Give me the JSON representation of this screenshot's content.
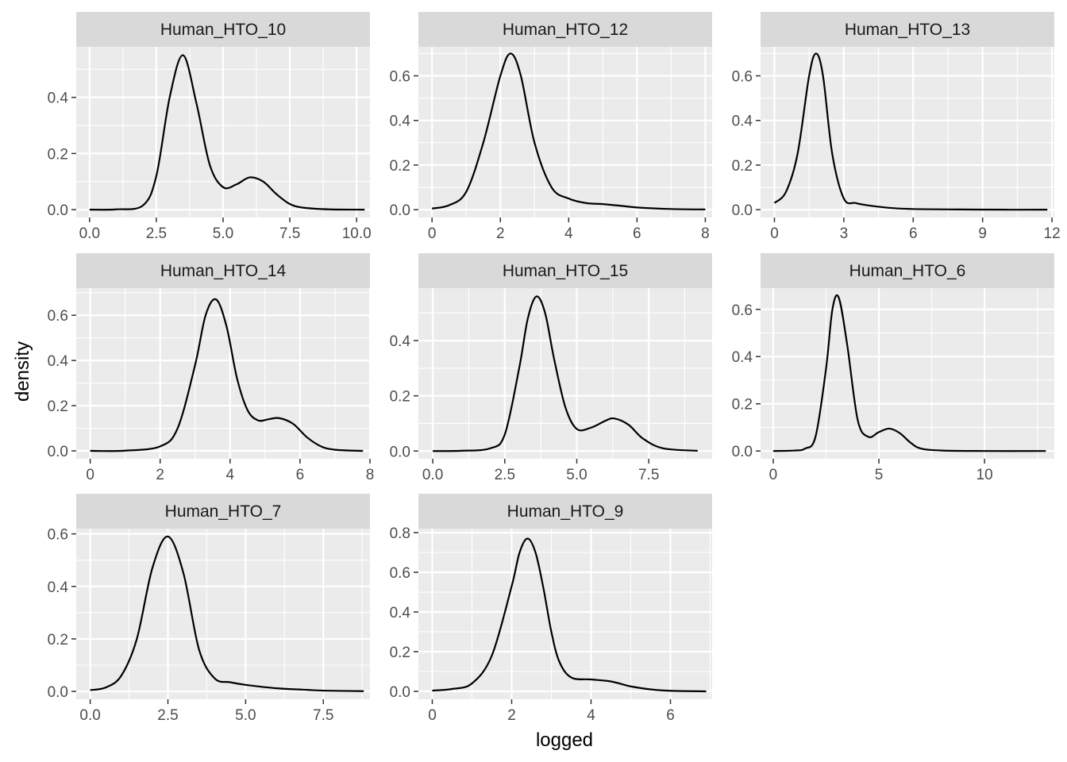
{
  "chart_data": {
    "type": "line",
    "layout": "facet-grid",
    "xlabel": "logged",
    "ylabel": "density",
    "colors": {
      "panel_bg": "#ebebeb",
      "grid": "#ffffff",
      "strip_bg": "#d9d9d9",
      "line": "#000000",
      "tick_text": "#4d4d4d",
      "tick_mark": "#333333"
    },
    "facets": [
      {
        "name": "Human_HTO_10",
        "xlim": [
          -0.5,
          10.5
        ],
        "ylim": [
          -0.028,
          0.58
        ],
        "xticks": [
          0,
          2.5,
          5,
          7.5,
          10
        ],
        "xtick_labels": [
          "0.0",
          "2.5",
          "5.0",
          "7.5",
          "10.0"
        ],
        "yticks": [
          0,
          0.2,
          0.4
        ],
        "ytick_labels": [
          "0.0",
          "0.2",
          "0.4"
        ],
        "x": [
          0.0,
          1.0,
          2.0,
          2.5,
          3.0,
          3.5,
          4.0,
          4.5,
          5.0,
          5.5,
          6.0,
          6.5,
          7.0,
          7.5,
          8.0,
          9.0,
          10.3
        ],
        "y": [
          0.0,
          0.001,
          0.015,
          0.12,
          0.4,
          0.55,
          0.38,
          0.16,
          0.08,
          0.09,
          0.115,
          0.1,
          0.055,
          0.02,
          0.007,
          0.001,
          0.0
        ]
      },
      {
        "name": "Human_HTO_12",
        "xlim": [
          -0.4,
          8.2
        ],
        "ylim": [
          -0.035,
          0.73
        ],
        "xticks": [
          0,
          2,
          4,
          6,
          8
        ],
        "xtick_labels": [
          "0",
          "2",
          "4",
          "6",
          "8"
        ],
        "yticks": [
          0,
          0.2,
          0.4,
          0.6
        ],
        "ytick_labels": [
          "0.0",
          "0.2",
          "0.4",
          "0.6"
        ],
        "x": [
          0.0,
          0.5,
          1.0,
          1.5,
          2.0,
          2.3,
          2.6,
          3.0,
          3.5,
          4.0,
          4.5,
          5.0,
          5.5,
          6.0,
          7.0,
          8.0
        ],
        "y": [
          0.005,
          0.02,
          0.08,
          0.3,
          0.6,
          0.7,
          0.6,
          0.3,
          0.1,
          0.05,
          0.03,
          0.025,
          0.018,
          0.01,
          0.003,
          0.001
        ]
      },
      {
        "name": "Human_HTO_13",
        "xlim": [
          -0.6,
          12.1
        ],
        "ylim": [
          -0.035,
          0.73
        ],
        "xticks": [
          0,
          3,
          6,
          9,
          12
        ],
        "xtick_labels": [
          "0",
          "3",
          "6",
          "9",
          "12"
        ],
        "yticks": [
          0,
          0.2,
          0.4,
          0.6
        ],
        "ytick_labels": [
          "0.0",
          "0.2",
          "0.4",
          "0.6"
        ],
        "x": [
          0.0,
          0.5,
          1.0,
          1.5,
          1.8,
          2.1,
          2.5,
          3.0,
          3.5,
          4.0,
          5.0,
          6.0,
          8.0,
          10.0,
          11.8
        ],
        "y": [
          0.03,
          0.08,
          0.25,
          0.6,
          0.7,
          0.6,
          0.25,
          0.05,
          0.03,
          0.02,
          0.008,
          0.003,
          0.001,
          0.0,
          0.0
        ]
      },
      {
        "name": "Human_HTO_14",
        "xlim": [
          -0.4,
          8.0
        ],
        "ylim": [
          -0.035,
          0.72
        ],
        "xticks": [
          0,
          2,
          4,
          6,
          8
        ],
        "xtick_labels": [
          "0",
          "2",
          "4",
          "6",
          "8"
        ],
        "yticks": [
          0,
          0.2,
          0.4,
          0.6
        ],
        "ytick_labels": [
          "0.0",
          "0.2",
          "0.4",
          "0.6"
        ],
        "x": [
          0.0,
          1.0,
          2.0,
          2.5,
          3.0,
          3.3,
          3.6,
          3.9,
          4.2,
          4.5,
          4.8,
          5.1,
          5.4,
          5.8,
          6.2,
          6.6,
          7.0,
          7.8
        ],
        "y": [
          0.0,
          0.001,
          0.02,
          0.1,
          0.38,
          0.6,
          0.67,
          0.55,
          0.32,
          0.18,
          0.135,
          0.14,
          0.145,
          0.12,
          0.06,
          0.02,
          0.005,
          0.0
        ]
      },
      {
        "name": "Human_HTO_15",
        "xlim": [
          -0.5,
          9.7
        ],
        "ylim": [
          -0.028,
          0.59
        ],
        "xticks": [
          0,
          2.5,
          5,
          7.5
        ],
        "xtick_labels": [
          "0.0",
          "2.5",
          "5.0",
          "7.5"
        ],
        "yticks": [
          0,
          0.2,
          0.4
        ],
        "ytick_labels": [
          "0.0",
          "0.2",
          "0.4"
        ],
        "x": [
          0.0,
          1.0,
          2.0,
          2.5,
          3.0,
          3.3,
          3.6,
          3.9,
          4.2,
          4.6,
          5.0,
          5.5,
          6.0,
          6.3,
          6.8,
          7.3,
          8.0,
          9.2
        ],
        "y": [
          0.0,
          0.001,
          0.01,
          0.06,
          0.3,
          0.48,
          0.56,
          0.5,
          0.34,
          0.16,
          0.08,
          0.085,
          0.11,
          0.118,
          0.095,
          0.045,
          0.01,
          0.001
        ]
      },
      {
        "name": "Human_HTO_6",
        "xlim": [
          -0.6,
          13.3
        ],
        "ylim": [
          -0.033,
          0.69
        ],
        "xticks": [
          0,
          5,
          10
        ],
        "xtick_labels": [
          "0",
          "5",
          "10"
        ],
        "yticks": [
          0,
          0.2,
          0.4,
          0.6
        ],
        "ytick_labels": [
          "0.0",
          "0.2",
          "0.4",
          "0.6"
        ],
        "x": [
          0.0,
          1.0,
          1.5,
          2.0,
          2.5,
          2.8,
          3.1,
          3.5,
          4.0,
          4.5,
          5.0,
          5.5,
          6.0,
          6.5,
          7.0,
          8.0,
          10.0,
          12.9
        ],
        "y": [
          0.0,
          0.002,
          0.01,
          0.06,
          0.35,
          0.6,
          0.65,
          0.45,
          0.13,
          0.06,
          0.08,
          0.095,
          0.075,
          0.035,
          0.01,
          0.002,
          0.0,
          0.0
        ]
      },
      {
        "name": "Human_HTO_7",
        "xlim": [
          -0.45,
          9.0
        ],
        "ylim": [
          -0.03,
          0.62
        ],
        "xticks": [
          0,
          2.5,
          5,
          7.5
        ],
        "xtick_labels": [
          "0.0",
          "2.5",
          "5.0",
          "7.5"
        ],
        "yticks": [
          0,
          0.2,
          0.4,
          0.6
        ],
        "ytick_labels": [
          "0.0",
          "0.2",
          "0.4",
          "0.6"
        ],
        "x": [
          0.0,
          0.5,
          1.0,
          1.5,
          2.0,
          2.5,
          3.0,
          3.5,
          4.0,
          4.5,
          5.0,
          6.0,
          7.0,
          7.5,
          8.8
        ],
        "y": [
          0.005,
          0.015,
          0.06,
          0.2,
          0.47,
          0.59,
          0.45,
          0.16,
          0.05,
          0.035,
          0.025,
          0.012,
          0.006,
          0.003,
          0.001
        ]
      },
      {
        "name": "Human_HTO_9",
        "xlim": [
          -0.35,
          7.05
        ],
        "ylim": [
          -0.04,
          0.82
        ],
        "xticks": [
          0,
          2,
          4,
          6
        ],
        "xtick_labels": [
          "0",
          "2",
          "4",
          "6"
        ],
        "yticks": [
          0,
          0.2,
          0.4,
          0.6,
          0.8
        ],
        "ytick_labels": [
          "0.0",
          "0.2",
          "0.4",
          "0.6",
          "0.8"
        ],
        "x": [
          0.0,
          0.5,
          1.0,
          1.5,
          2.0,
          2.2,
          2.4,
          2.6,
          2.8,
          3.0,
          3.2,
          3.5,
          4.0,
          4.5,
          5.0,
          5.5,
          6.0,
          6.9
        ],
        "y": [
          0.004,
          0.012,
          0.04,
          0.18,
          0.53,
          0.7,
          0.77,
          0.7,
          0.52,
          0.3,
          0.15,
          0.07,
          0.06,
          0.05,
          0.025,
          0.01,
          0.003,
          0.0
        ]
      }
    ]
  }
}
